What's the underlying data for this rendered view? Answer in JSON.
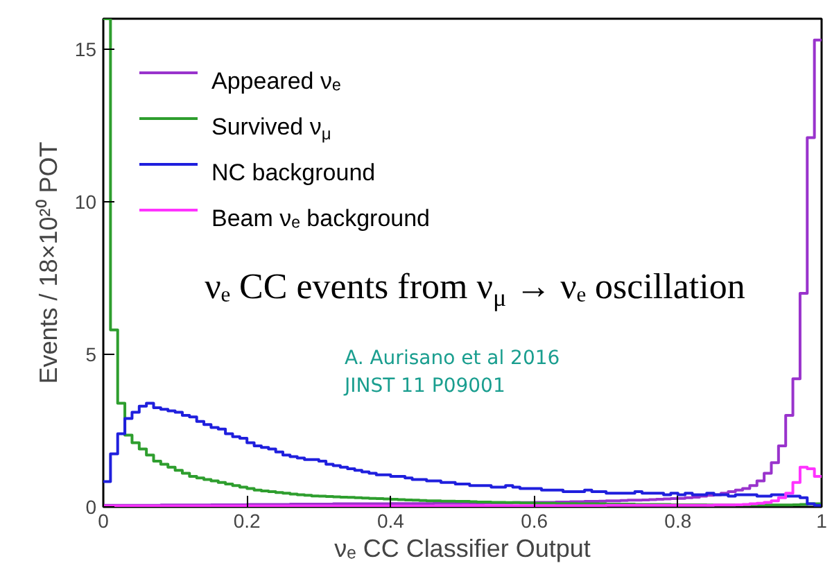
{
  "chart_data": {
    "type": "histogram",
    "xlabel": "νₑ CC Classifier Output",
    "ylabel": "Events / 18×10²⁰ POT",
    "annotations": [
      "νₑ CC events from ν$_{μ}$ → νₑ oscillation",
      "A. Aurisano et al 2016\nJINST 11 P09001"
    ],
    "bins": [
      0,
      0.01,
      0.02,
      0.03,
      0.04,
      0.05,
      0.06,
      0.07,
      0.08,
      0.09,
      0.1,
      0.11,
      0.12,
      0.13,
      0.14,
      0.15,
      0.16,
      0.17,
      0.18,
      0.19,
      0.2,
      0.21,
      0.22,
      0.23,
      0.24,
      0.25,
      0.26,
      0.27,
      0.28,
      0.29,
      0.3,
      0.31,
      0.32,
      0.33,
      0.34,
      0.35,
      0.36,
      0.37,
      0.38,
      0.39,
      0.4,
      0.41,
      0.42,
      0.43,
      0.44,
      0.45,
      0.46,
      0.47,
      0.48,
      0.49,
      0.5,
      0.51,
      0.52,
      0.53,
      0.54,
      0.55,
      0.56,
      0.57,
      0.58,
      0.59,
      0.6,
      0.61,
      0.62,
      0.63,
      0.64,
      0.65,
      0.66,
      0.67,
      0.68,
      0.69,
      0.7,
      0.71,
      0.72,
      0.73,
      0.74,
      0.75,
      0.76,
      0.77,
      0.78,
      0.79,
      0.8,
      0.81,
      0.82,
      0.83,
      0.84,
      0.85,
      0.86,
      0.87,
      0.88,
      0.89,
      0.9,
      0.91,
      0.92,
      0.93,
      0.94,
      0.95,
      0.96,
      0.97,
      0.98,
      0.99,
      1
    ],
    "series": [
      {
        "name": "Appeared νₑ",
        "color": "#9933cc",
        "values": [
          0.05,
          0.05,
          0.05,
          0.05,
          0.05,
          0.05,
          0.05,
          0.05,
          0.06,
          0.06,
          0.06,
          0.06,
          0.06,
          0.06,
          0.06,
          0.07,
          0.07,
          0.07,
          0.07,
          0.07,
          0.08,
          0.08,
          0.08,
          0.08,
          0.08,
          0.08,
          0.09,
          0.09,
          0.09,
          0.09,
          0.09,
          0.09,
          0.1,
          0.1,
          0.1,
          0.1,
          0.1,
          0.1,
          0.1,
          0.1,
          0.11,
          0.11,
          0.11,
          0.11,
          0.11,
          0.11,
          0.12,
          0.12,
          0.12,
          0.12,
          0.12,
          0.12,
          0.12,
          0.13,
          0.13,
          0.13,
          0.13,
          0.14,
          0.14,
          0.14,
          0.15,
          0.15,
          0.15,
          0.16,
          0.16,
          0.17,
          0.17,
          0.18,
          0.18,
          0.19,
          0.2,
          0.2,
          0.21,
          0.22,
          0.22,
          0.23,
          0.24,
          0.25,
          0.26,
          0.27,
          0.28,
          0.3,
          0.32,
          0.35,
          0.38,
          0.4,
          0.45,
          0.5,
          0.55,
          0.6,
          0.7,
          0.85,
          1.1,
          1.45,
          2.0,
          3.0,
          4.2,
          7.0,
          12.1,
          15.3
        ]
      },
      {
        "name": "Survived ν$_{μ}$",
        "color": "#2e9e2e",
        "values": [
          16,
          5.8,
          3.4,
          2.35,
          2.1,
          1.9,
          1.7,
          1.5,
          1.4,
          1.3,
          1.2,
          1.1,
          1.0,
          0.95,
          0.9,
          0.85,
          0.8,
          0.75,
          0.7,
          0.65,
          0.6,
          0.55,
          0.52,
          0.5,
          0.47,
          0.45,
          0.42,
          0.4,
          0.38,
          0.36,
          0.35,
          0.34,
          0.33,
          0.32,
          0.31,
          0.3,
          0.29,
          0.28,
          0.27,
          0.26,
          0.25,
          0.24,
          0.23,
          0.22,
          0.21,
          0.2,
          0.2,
          0.19,
          0.19,
          0.18,
          0.18,
          0.17,
          0.16,
          0.16,
          0.15,
          0.15,
          0.14,
          0.14,
          0.13,
          0.13,
          0.12,
          0.12,
          0.12,
          0.11,
          0.11,
          0.11,
          0.1,
          0.1,
          0.1,
          0.1,
          0.09,
          0.09,
          0.09,
          0.09,
          0.08,
          0.08,
          0.08,
          0.08,
          0.08,
          0.07,
          0.07,
          0.07,
          0.07,
          0.07,
          0.06,
          0.06,
          0.06,
          0.06,
          0.06,
          0.06,
          0.06,
          0.06,
          0.06,
          0.06,
          0.06,
          0.06,
          0.07,
          0.08,
          0.1,
          0.1
        ]
      },
      {
        "name": "NC background",
        "color": "#1f1fdd",
        "values": [
          0.83,
          1.74,
          2.4,
          2.9,
          3.1,
          3.3,
          3.4,
          3.25,
          3.2,
          3.15,
          3.1,
          3.0,
          2.95,
          2.8,
          2.7,
          2.6,
          2.55,
          2.4,
          2.3,
          2.25,
          2.1,
          2.0,
          1.95,
          1.9,
          1.8,
          1.7,
          1.65,
          1.6,
          1.55,
          1.55,
          1.5,
          1.4,
          1.35,
          1.3,
          1.25,
          1.2,
          1.15,
          1.1,
          1.05,
          1.05,
          1.0,
          1.0,
          0.95,
          0.9,
          0.9,
          0.85,
          0.85,
          0.8,
          0.8,
          0.75,
          0.75,
          0.7,
          0.7,
          0.7,
          0.65,
          0.65,
          0.7,
          0.65,
          0.6,
          0.6,
          0.6,
          0.55,
          0.55,
          0.55,
          0.5,
          0.5,
          0.5,
          0.55,
          0.5,
          0.5,
          0.45,
          0.45,
          0.45,
          0.45,
          0.5,
          0.45,
          0.45,
          0.45,
          0.4,
          0.45,
          0.4,
          0.45,
          0.4,
          0.4,
          0.45,
          0.4,
          0.4,
          0.35,
          0.4,
          0.4,
          0.4,
          0.35,
          0.35,
          0.4,
          0.4,
          0.35,
          0.35,
          0.3,
          0.1,
          0.05
        ]
      },
      {
        "name": "Beam νₑ background",
        "color": "#ff33ff",
        "values": [
          0.03,
          0.03,
          0.03,
          0.03,
          0.03,
          0.03,
          0.03,
          0.03,
          0.03,
          0.03,
          0.03,
          0.03,
          0.03,
          0.03,
          0.03,
          0.03,
          0.03,
          0.03,
          0.03,
          0.03,
          0.03,
          0.03,
          0.03,
          0.03,
          0.03,
          0.03,
          0.03,
          0.03,
          0.03,
          0.03,
          0.03,
          0.03,
          0.03,
          0.03,
          0.03,
          0.03,
          0.03,
          0.03,
          0.03,
          0.03,
          0.03,
          0.03,
          0.03,
          0.03,
          0.03,
          0.03,
          0.03,
          0.03,
          0.03,
          0.03,
          0.04,
          0.04,
          0.04,
          0.04,
          0.04,
          0.04,
          0.04,
          0.04,
          0.04,
          0.04,
          0.04,
          0.04,
          0.04,
          0.04,
          0.04,
          0.04,
          0.04,
          0.04,
          0.04,
          0.04,
          0.05,
          0.05,
          0.05,
          0.05,
          0.05,
          0.05,
          0.05,
          0.05,
          0.05,
          0.05,
          0.05,
          0.05,
          0.05,
          0.05,
          0.05,
          0.06,
          0.06,
          0.06,
          0.07,
          0.08,
          0.1,
          0.12,
          0.15,
          0.2,
          0.3,
          0.45,
          0.8,
          1.3,
          1.25,
          1.0
        ]
      }
    ],
    "xlim": [
      0,
      1
    ],
    "ylim": [
      0,
      16
    ],
    "xticks": [
      0,
      0.2,
      0.4,
      0.6,
      0.8,
      1
    ],
    "yticks": [
      0,
      5,
      10,
      15
    ],
    "grid": false,
    "legend": "top left"
  }
}
